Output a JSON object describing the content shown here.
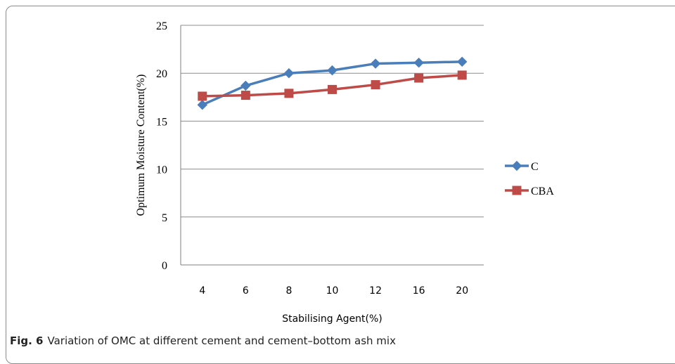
{
  "caption": {
    "label": "Fig. 6",
    "text": "Variation of OMC at different cement and cement–bottom ash mix"
  },
  "chart_data": {
    "type": "line",
    "categories": [
      "4",
      "6",
      "8",
      "10",
      "12",
      "16",
      "20"
    ],
    "xlabel": "Stabilising Agent(%)",
    "ylabel": "Optimum Moisture Content(%)",
    "ylim": [
      0,
      25
    ],
    "yticks": [
      "0",
      "5",
      "10",
      "15",
      "20",
      "25"
    ],
    "grid": true,
    "legend_position": "right",
    "series": [
      {
        "name": "C",
        "color": "#4a7ebb",
        "marker": "diamond",
        "values": [
          16.7,
          18.7,
          20.0,
          20.3,
          21.0,
          21.1,
          21.2
        ]
      },
      {
        "name": "CBA",
        "color": "#be4b48",
        "marker": "square",
        "values": [
          17.6,
          17.7,
          17.9,
          18.3,
          18.8,
          19.5,
          19.8
        ]
      }
    ]
  }
}
